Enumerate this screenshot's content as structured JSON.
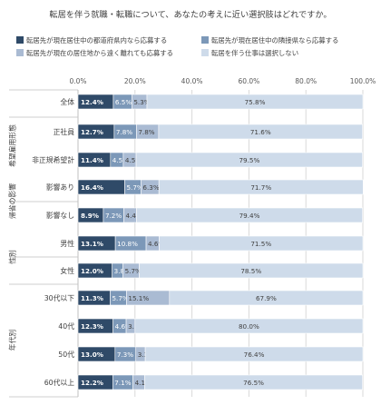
{
  "title": "転居を伴う就職・転職について、あなたの考えに近い選択肢はどれですか。",
  "chart_data": {
    "type": "bar",
    "orientation": "horizontal",
    "stacked": true,
    "xlim": [
      0,
      100
    ],
    "x_ticks": [
      "0.0%",
      "20.0%",
      "40.0%",
      "60.0%",
      "80.0%",
      "100.0%"
    ],
    "grid": true,
    "legend_position": "top",
    "colors": [
      "#2f4a68",
      "#7c98b8",
      "#aabbd3",
      "#cedbea"
    ],
    "series": [
      {
        "name": "転居先が現在居住中の都道府県内なら応募する"
      },
      {
        "name": "転居先が現在居住中の隣接県なら応募する"
      },
      {
        "name": "転居先が現在の居住地から遠く離れても応募する"
      },
      {
        "name": "転居を伴う仕事は選択しない"
      }
    ],
    "groups": [
      {
        "label": "",
        "rows": [
          0
        ]
      },
      {
        "label": "希望雇用形態",
        "rows": [
          1,
          2
        ]
      },
      {
        "label": "帰省の影響",
        "rows": [
          3,
          4
        ]
      },
      {
        "label": "性別",
        "rows": [
          5,
          6
        ]
      },
      {
        "label": "年代別",
        "rows": [
          7,
          8,
          9,
          10
        ]
      }
    ],
    "categories": [
      "全体",
      "正社員",
      "非正規希望計",
      "影響あり",
      "影響なし",
      "男性",
      "女性",
      "30代以下",
      "40代",
      "50代",
      "60代以上"
    ],
    "values": [
      [
        12.4,
        6.5,
        5.3,
        75.8
      ],
      [
        12.7,
        7.8,
        7.8,
        71.6
      ],
      [
        11.4,
        4.5,
        4.5,
        79.5
      ],
      [
        16.4,
        5.7,
        6.3,
        71.7
      ],
      [
        8.9,
        7.2,
        4.4,
        79.4
      ],
      [
        13.1,
        10.8,
        4.6,
        71.5
      ],
      [
        12.0,
        3.8,
        5.7,
        78.5
      ],
      [
        11.3,
        5.7,
        15.1,
        67.9
      ],
      [
        12.3,
        4.6,
        3.1,
        80.0
      ],
      [
        13.0,
        7.3,
        3.3,
        76.4
      ],
      [
        12.2,
        7.1,
        4.1,
        76.5
      ]
    ],
    "labels": [
      [
        "12.4%",
        "6.5%",
        "5.3%",
        "75.8%"
      ],
      [
        "12.7%",
        "7.8%",
        "7.8%",
        "71.6%"
      ],
      [
        "11.4%",
        "4.5%",
        "4.5%",
        "79.5%"
      ],
      [
        "16.4%",
        "5.7%",
        "6.3%",
        "71.7%"
      ],
      [
        "8.9%",
        "7.2%",
        "4.4%",
        "79.4%"
      ],
      [
        "13.1%",
        "10.8%",
        "4.6%",
        "71.5%"
      ],
      [
        "12.0%",
        "3.8%",
        "5.7%",
        "78.5%"
      ],
      [
        "11.3%",
        "5.7%",
        "15.1%",
        "67.9%"
      ],
      [
        "12.3%",
        "4.6%",
        "3.1%",
        "80.0%"
      ],
      [
        "13.0%",
        "7.3%",
        "3.3%",
        "76.4%"
      ],
      [
        "12.2%",
        "7.1%",
        "4.1%",
        "76.5%"
      ]
    ]
  }
}
